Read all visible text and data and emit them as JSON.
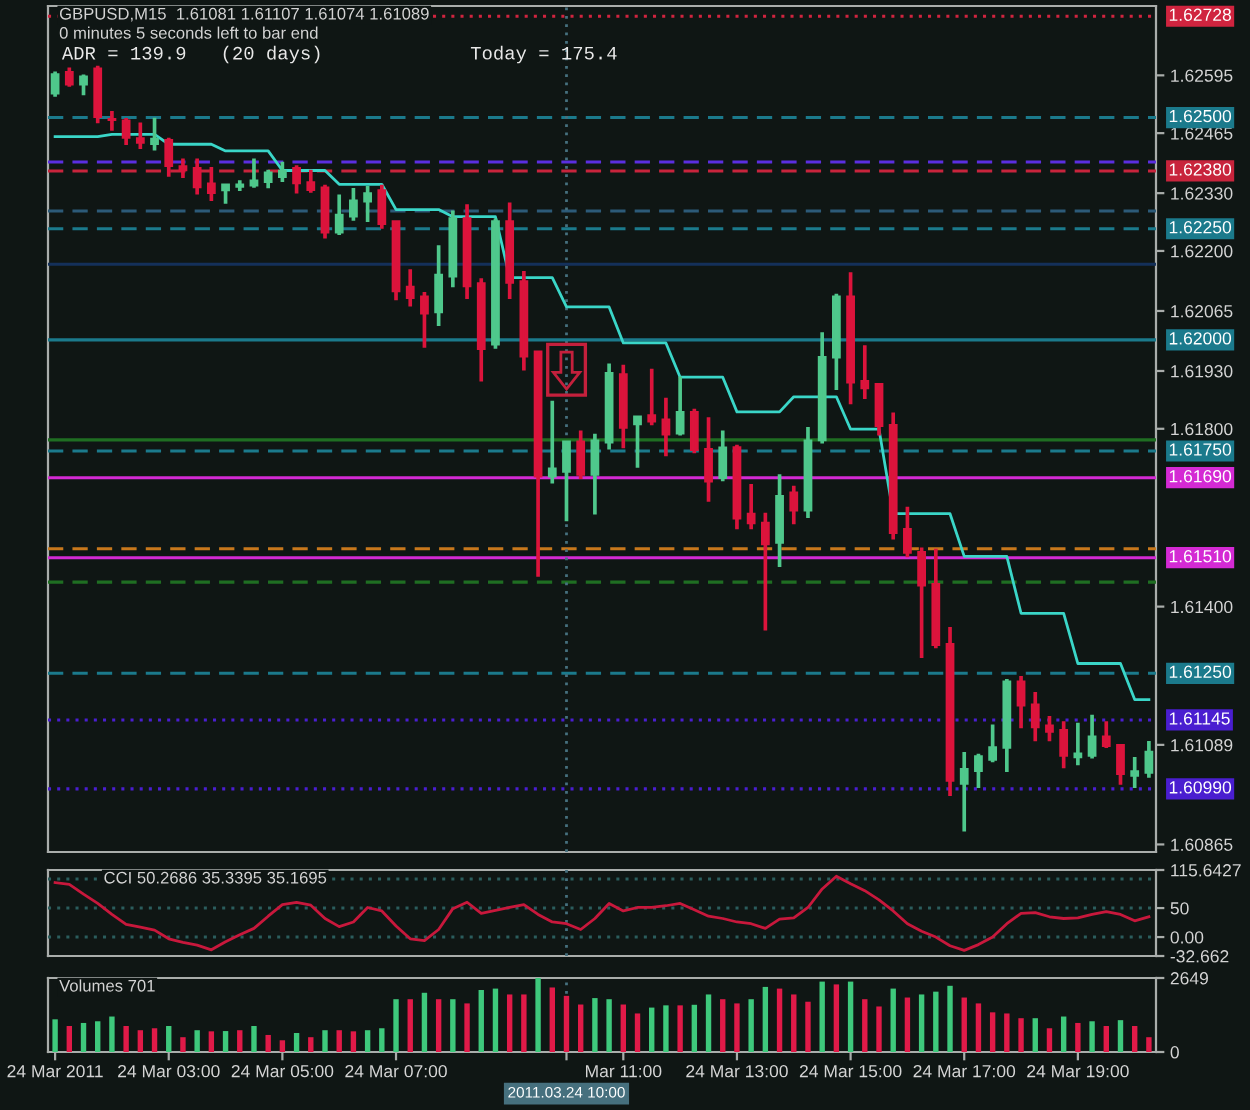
{
  "chart_data": [
    {
      "type": "candlestick",
      "title": "GBPUSD,M15  1.61081 1.61107 1.61074 1.61089",
      "subtitle": "0 minutes 5 seconds left to bar end",
      "annotations": [
        "ADR = 139.9   (20 days)",
        "Today = 175.4"
      ],
      "categories": [
        "24 Mar 2011",
        null,
        null,
        null,
        null,
        null,
        null,
        null,
        "24 Mar 03:00",
        null,
        null,
        null,
        null,
        null,
        null,
        null,
        "24 Mar 05:00",
        null,
        null,
        null,
        null,
        null,
        null,
        null,
        "24 Mar 07:00",
        null,
        null,
        null,
        null,
        null,
        null,
        null,
        null,
        null,
        null,
        null,
        "2011.03.24 10:00",
        null,
        null,
        null,
        "Mar 11:00",
        null,
        null,
        null,
        null,
        null,
        null,
        null,
        "24 Mar 13:00",
        null,
        null,
        null,
        null,
        null,
        null,
        null,
        "24 Mar 15:00",
        null,
        null,
        null,
        null,
        null,
        null,
        null,
        "24 Mar 17:00",
        null,
        null,
        null,
        null,
        null,
        null,
        null,
        "24 Mar 19:00",
        null,
        null,
        null,
        null,
        null
      ],
      "ohlc": [
        [
          1.62554,
          1.62602,
          1.62549,
          1.62598
        ],
        [
          1.62603,
          1.62611,
          1.62571,
          1.62574
        ],
        [
          1.62574,
          1.62595,
          1.62552,
          1.62593
        ],
        [
          1.62611,
          1.62615,
          1.62489,
          1.62501
        ],
        [
          1.62497,
          1.62513,
          1.62472,
          1.62494
        ],
        [
          1.62494,
          1.62497,
          1.6244,
          1.62454
        ],
        [
          1.62454,
          1.62487,
          1.62431,
          1.62443
        ],
        [
          1.6244,
          1.62498,
          1.62428,
          1.62453
        ],
        [
          1.6245,
          1.62453,
          1.62369,
          1.62391
        ],
        [
          1.62391,
          1.62406,
          1.62366,
          1.62381
        ],
        [
          1.62387,
          1.62406,
          1.62329,
          1.62343
        ],
        [
          1.62352,
          1.62387,
          1.62314,
          1.6233
        ],
        [
          1.62336,
          1.6235,
          1.62308,
          1.6235
        ],
        [
          1.62344,
          1.62357,
          1.62337,
          1.6235
        ],
        [
          1.62347,
          1.62406,
          1.62344,
          1.62359
        ],
        [
          1.62355,
          1.62381,
          1.62343,
          1.62377
        ],
        [
          1.62366,
          1.62399,
          1.62357,
          1.62381
        ],
        [
          1.62387,
          1.62391,
          1.62331,
          1.62352
        ],
        [
          1.62355,
          1.62381,
          1.62333,
          1.62337
        ],
        [
          1.62343,
          1.62347,
          1.6223,
          1.62241
        ],
        [
          1.62241,
          1.62325,
          1.62238,
          1.62282
        ],
        [
          1.62277,
          1.6234,
          1.6227,
          1.62314
        ],
        [
          1.62311,
          1.62344,
          1.62267,
          1.6233
        ],
        [
          1.62337,
          1.62347,
          1.62252,
          1.6226
        ],
        [
          1.62267,
          1.62267,
          1.62091,
          1.62109
        ],
        [
          1.6212,
          1.62157,
          1.62077,
          1.62094
        ],
        [
          1.62098,
          1.62106,
          1.61984,
          1.62059
        ],
        [
          1.62062,
          1.62211,
          1.62033,
          1.62147
        ],
        [
          1.62142,
          1.62289,
          1.6212,
          1.62274
        ],
        [
          1.62274,
          1.62303,
          1.62094,
          1.6212
        ],
        [
          1.62128,
          1.62137,
          1.61908,
          1.61979
        ],
        [
          1.61989,
          1.62271,
          1.61982,
          1.62267
        ],
        [
          1.62267,
          1.62307,
          1.62094,
          1.62128
        ],
        [
          1.62132,
          1.62153,
          1.61933,
          1.61962
        ],
        [
          1.61974,
          1.61974,
          1.61469,
          1.61692
        ],
        [
          1.61692,
          1.61861,
          1.61679,
          1.61711
        ],
        [
          1.61703,
          1.61772,
          1.61594,
          1.61772
        ],
        [
          1.61772,
          1.61794,
          1.61689,
          1.61696
        ],
        [
          1.61696,
          1.61787,
          1.61609,
          1.61774
        ],
        [
          1.61769,
          1.61945,
          1.61755,
          1.61926
        ],
        [
          1.61923,
          1.61942,
          1.61758,
          1.61802
        ],
        [
          1.6181,
          1.61828,
          1.61714,
          1.61828
        ],
        [
          1.61831,
          1.61933,
          1.6181,
          1.61816
        ],
        [
          1.61821,
          1.61868,
          1.6174,
          1.61787
        ],
        [
          1.61789,
          1.61916,
          1.61787,
          1.61838
        ],
        [
          1.61838,
          1.61843,
          1.61747,
          1.61752
        ],
        [
          1.61755,
          1.61824,
          1.61638,
          1.61681
        ],
        [
          1.61689,
          1.61794,
          1.61684,
          1.61758
        ],
        [
          1.61759,
          1.61762,
          1.61576,
          1.61598
        ],
        [
          1.61609,
          1.61674,
          1.61576,
          1.61587
        ],
        [
          1.61589,
          1.61609,
          1.61348,
          1.6154
        ],
        [
          1.61543,
          1.61696,
          1.61491,
          1.61649
        ],
        [
          1.61657,
          1.6167,
          1.61587,
          1.61616
        ],
        [
          1.61616,
          1.61802,
          1.61601,
          1.61774
        ],
        [
          1.61774,
          1.62015,
          1.61769,
          1.61962
        ],
        [
          1.6196,
          1.62102,
          1.61889,
          1.62098
        ],
        [
          1.62098,
          1.6215,
          1.61857,
          1.61904
        ],
        [
          1.61908,
          1.61986,
          1.61869,
          1.61891
        ],
        [
          1.61901,
          1.61901,
          1.61787,
          1.61806
        ],
        [
          1.61809,
          1.61835,
          1.61553,
          1.61565
        ],
        [
          1.61575,
          1.61623,
          1.61513,
          1.61521
        ],
        [
          1.61523,
          1.61531,
          1.61286,
          1.61447
        ],
        [
          1.61451,
          1.61528,
          1.61308,
          1.61313
        ],
        [
          1.61316,
          1.61352,
          1.60976,
          1.61008
        ],
        [
          1.61001,
          1.61071,
          1.60896,
          1.61035
        ],
        [
          1.6103,
          1.61067,
          1.60994,
          1.61064
        ],
        [
          1.61055,
          1.61133,
          1.61052,
          1.61084
        ],
        [
          1.61082,
          1.61235,
          1.6103,
          1.61232
        ],
        [
          1.61232,
          1.61242,
          1.61128,
          1.61177
        ],
        [
          1.6118,
          1.61206,
          1.61099,
          1.61128
        ],
        [
          1.61133,
          1.61152,
          1.61099,
          1.61118
        ],
        [
          1.61123,
          1.6114,
          1.61038,
          1.61064
        ],
        [
          1.61061,
          1.61137,
          1.61045,
          1.6107
        ],
        [
          1.61064,
          1.61155,
          1.6106,
          1.61108
        ],
        [
          1.61108,
          1.6114,
          1.61084,
          1.61086
        ],
        [
          1.61089,
          1.61089,
          1.61001,
          1.61023
        ],
        [
          1.61019,
          1.6106,
          1.60994,
          1.6103
        ],
        [
          1.61026,
          1.61096,
          1.61017,
          1.61074
        ]
      ],
      "colors": [
        "#4fc88c",
        "#dc143c",
        "#4fc88c",
        "#dc143c",
        "#dc143c",
        "#dc143c",
        "#dc143c",
        "#4fc88c",
        "#dc143c",
        "#dc143c",
        "#dc143c",
        "#dc143c",
        "#4fc88c",
        "#4fc88c",
        "#4fc88c",
        "#4fc88c",
        "#4fc88c",
        "#dc143c",
        "#dc143c",
        "#dc143c",
        "#4fc88c",
        "#4fc88c",
        "#4fc88c",
        "#dc143c",
        "#dc143c",
        "#dc143c",
        "#dc143c",
        "#4fc88c",
        "#4fc88c",
        "#dc143c",
        "#dc143c",
        "#4fc88c",
        "#dc143c",
        "#dc143c",
        "#dc143c",
        "#4fc88c",
        "#4fc88c",
        "#dc143c",
        "#4fc88c",
        "#4fc88c",
        "#dc143c",
        "#4fc88c",
        "#dc143c",
        "#dc143c",
        "#4fc88c",
        "#dc143c",
        "#dc143c",
        "#4fc88c",
        "#dc143c",
        "#dc143c",
        "#dc143c",
        "#4fc88c",
        "#dc143c",
        "#4fc88c",
        "#4fc88c",
        "#4fc88c",
        "#dc143c",
        "#dc143c",
        "#dc143c",
        "#dc143c",
        "#dc143c",
        "#dc143c",
        "#dc143c",
        "#dc143c",
        "#4fc88c",
        "#4fc88c",
        "#4fc88c",
        "#4fc88c",
        "#dc143c",
        "#dc143c",
        "#dc143c",
        "#dc143c",
        "#4fc88c",
        "#4fc88c",
        "#dc143c",
        "#dc143c",
        "#4fc88c",
        "#4fc88c"
      ],
      "series": [
        {
          "type": "line",
          "color": "#3ad6c8",
          "values": [
            1.62457,
            1.62457,
            1.62457,
            1.62457,
            1.62462,
            1.62462,
            1.62462,
            1.62462,
            1.6244,
            1.6244,
            1.6244,
            1.6244,
            1.62425,
            1.62425,
            1.62425,
            1.62425,
            1.62381,
            1.62381,
            1.62381,
            1.62381,
            1.6235,
            1.6235,
            1.6235,
            1.6235,
            1.62293,
            1.62293,
            1.62293,
            1.62293,
            1.62277,
            1.62277,
            1.62277,
            1.62277,
            1.6214,
            1.6214,
            1.6214,
            1.6214,
            1.62074,
            1.62074,
            1.62074,
            1.62074,
            1.61993,
            1.61993,
            1.61993,
            1.61993,
            1.61916,
            1.61916,
            1.61916,
            1.61916,
            1.61838,
            1.61838,
            1.61838,
            1.61838,
            1.61872,
            1.61872,
            1.61872,
            1.61872,
            1.61799,
            1.61799,
            1.61799,
            1.61609,
            1.61609,
            1.61609,
            1.61609,
            1.61609,
            1.61513,
            1.61513,
            1.61513,
            1.61513,
            1.61385,
            1.61385,
            1.61385,
            1.61385,
            1.61272,
            1.61272,
            1.61272,
            1.61272,
            1.61191,
            1.61191
          ]
        }
      ],
      "ylim": [
        1.60848,
        1.62751
      ],
      "yticks": [
        1.60865,
        1.61089,
        {
          "value": 1.614,
          "label": "1.61400"
        },
        {
          "value": 1.618,
          "label": "1.61800"
        },
        {
          "value": 1.6193,
          "label": "1.61930"
        },
        1.62065,
        {
          "value": 1.622,
          "label": "1.62200"
        },
        {
          "value": 1.6233,
          "label": "1.62330"
        },
        1.62465,
        1.62595
      ],
      "ref_lines": [
        {
          "axis": "y",
          "value": 1.62728,
          "label": "1.62728",
          "color": "#d0243f",
          "line_style": "dotted"
        },
        {
          "axis": "y",
          "value": 1.625,
          "label": "1.62500",
          "color": "#1b7a8c",
          "line_style": "dashed"
        },
        {
          "axis": "y",
          "value": 1.624,
          "color": "#5b2ee0",
          "line_style": "dashed"
        },
        {
          "axis": "y",
          "value": 1.6238,
          "label": "1.62380",
          "color": "#c8243c",
          "line_style": "dashed"
        },
        {
          "axis": "y",
          "value": 1.6229,
          "color": "#2c5a78",
          "line_style": "dashed"
        },
        {
          "axis": "y",
          "value": 1.6225,
          "label": "1.62250",
          "color": "#1b7a8c",
          "line_style": "dashed"
        },
        {
          "axis": "y",
          "value": 1.6217,
          "color": "#14305a",
          "line_style": "solid"
        },
        {
          "axis": "y",
          "value": 1.62,
          "label": "1.62000",
          "color": "#1b7a8c",
          "line_style": "solid"
        },
        {
          "axis": "y",
          "value": 1.61775,
          "color": "#1f6e22",
          "line_style": "solid"
        },
        {
          "axis": "y",
          "value": 1.6175,
          "label": "1.61750",
          "color": "#1b7a8c",
          "line_style": "dashed"
        },
        {
          "axis": "y",
          "value": 1.6169,
          "label": "1.61690",
          "color": "#d42ad4",
          "line_style": "solid"
        },
        {
          "axis": "y",
          "value": 1.6153,
          "color": "#c8781c",
          "line_style": "dashed"
        },
        {
          "axis": "y",
          "value": 1.6151,
          "label": "1.61510",
          "color": "#d42ad4",
          "line_style": "solid"
        },
        {
          "axis": "y",
          "value": 1.61455,
          "color": "#1f6e22",
          "line_style": "dashed"
        },
        {
          "axis": "y",
          "value": 1.6125,
          "label": "1.61250",
          "color": "#1b7a8c",
          "line_style": "dashed"
        },
        {
          "axis": "y",
          "value": 1.61145,
          "label": "1.61145",
          "color": "#4a1ed0",
          "line_style": "dotted"
        },
        {
          "axis": "y",
          "value": 1.6099,
          "label": "1.60990",
          "color": "#4a1ed0",
          "line_style": "dotted"
        },
        {
          "axis": "x",
          "value": "2011.03.24 10:00",
          "color": "#46707e",
          "line_style": "dotted"
        }
      ],
      "tick_labels": "y"
    },
    {
      "type": "line",
      "title": "CCI 50.2686 35.3395 35.1695",
      "color": "#c8183c",
      "categories": [
        "24 Mar 2011",
        null,
        null,
        null,
        null,
        null,
        null,
        null,
        "24 Mar 03:00",
        null,
        null,
        null,
        null,
        null,
        null,
        null,
        "24 Mar 05:00",
        null,
        null,
        null,
        null,
        null,
        null,
        null,
        "24 Mar 07:00",
        null,
        null,
        null,
        null,
        null,
        null,
        null,
        null,
        null,
        null,
        null,
        "2011.03.24 10:00",
        null,
        null,
        null,
        "Mar 11:00",
        null,
        null,
        null,
        null,
        null,
        null,
        null,
        "24 Mar 13:00",
        null,
        null,
        null,
        null,
        null,
        null,
        null,
        "24 Mar 15:00",
        null,
        null,
        null,
        null,
        null,
        null,
        null,
        "24 Mar 17:00",
        null,
        null,
        null,
        null,
        null,
        null,
        null,
        "24 Mar 19:00",
        null,
        null,
        null,
        null,
        null
      ],
      "values": [
        94,
        91,
        74,
        58,
        39,
        22,
        17,
        12,
        -3,
        -9,
        -14,
        -22,
        -8,
        4,
        15,
        36,
        56,
        60,
        55,
        32,
        18,
        26,
        51,
        45,
        19,
        -3,
        -6,
        13,
        49,
        60,
        41,
        46,
        51,
        56,
        39,
        26,
        23,
        13,
        32,
        58,
        45,
        51,
        51,
        54,
        58,
        47,
        36,
        32,
        26,
        23,
        15,
        31,
        33,
        51,
        83,
        105,
        92,
        80,
        64,
        45,
        23,
        10,
        0,
        -15,
        -23,
        -13,
        0,
        23,
        41,
        42,
        35,
        32,
        33,
        39,
        44,
        39,
        28,
        35
      ],
      "ylim": [
        -32.662,
        115.6427
      ],
      "yticks": [
        {
          "value": -32.662,
          "label": "-32.662"
        },
        {
          "value": 0,
          "label": "0.00"
        },
        50,
        {
          "value": 115.6427,
          "label": "115.6427"
        }
      ],
      "ref_lines": [
        {
          "axis": "y",
          "value": 100,
          "color": "#2b5d5d",
          "line_style": "dotted"
        },
        {
          "axis": "y",
          "value": 50,
          "color": "#2b5d5d",
          "line_style": "dotted"
        },
        {
          "axis": "y",
          "value": 0,
          "color": "#2b5d5d",
          "line_style": "dotted"
        },
        {
          "axis": "x",
          "value": "2011.03.24 10:00",
          "color": "#46707e",
          "line_style": "dotted"
        }
      ],
      "tick_labels": "y"
    },
    {
      "type": "bar",
      "title": "Volumes 701",
      "categories": [
        "24 Mar 2011",
        null,
        null,
        null,
        null,
        null,
        null,
        null,
        "24 Mar 03:00",
        null,
        null,
        null,
        null,
        null,
        null,
        null,
        "24 Mar 05:00",
        null,
        null,
        null,
        null,
        null,
        null,
        null,
        "24 Mar 07:00",
        null,
        null,
        null,
        null,
        null,
        null,
        null,
        null,
        null,
        null,
        null,
        "2011.03.24 10:00",
        null,
        null,
        null,
        "Mar 11:00",
        null,
        null,
        null,
        null,
        null,
        null,
        null,
        "24 Mar 13:00",
        null,
        null,
        null,
        null,
        null,
        null,
        null,
        "24 Mar 15:00",
        null,
        null,
        null,
        null,
        null,
        null,
        null,
        "24 Mar 17:00",
        null,
        null,
        null,
        null,
        null,
        null,
        null,
        "24 Mar 19:00",
        null,
        null,
        null,
        null,
        null
      ],
      "values": [
        1170,
        930,
        1040,
        1100,
        1270,
        930,
        780,
        850,
        930,
        530,
        780,
        740,
        750,
        780,
        930,
        610,
        420,
        680,
        530,
        780,
        780,
        740,
        780,
        850,
        1890,
        1890,
        2120,
        1890,
        1890,
        1740,
        2220,
        2270,
        2060,
        2060,
        2649,
        2310,
        2010,
        1700,
        1930,
        1890,
        1700,
        1380,
        1590,
        1670,
        1670,
        1690,
        2060,
        1890,
        1740,
        1890,
        2330,
        2270,
        2060,
        1800,
        2520,
        2420,
        2520,
        1890,
        1630,
        2270,
        1950,
        2060,
        2160,
        2370,
        1950,
        1740,
        1420,
        1380,
        1210,
        1210,
        850,
        1270,
        1040,
        1100,
        930,
        1140,
        930,
        530
      ],
      "colors": [
        "#3ec97c",
        "#e01a48",
        "#3ec97c",
        "#3ec97c",
        "#3ec97c",
        "#e01a48",
        "#e01a48",
        "#e01a48",
        "#3ec97c",
        "#e01a48",
        "#3ec97c",
        "#e01a48",
        "#3ec97c",
        "#e01a48",
        "#3ec97c",
        "#e01a48",
        "#e01a48",
        "#3ec97c",
        "#e01a48",
        "#3ec97c",
        "#e01a48",
        "#e01a48",
        "#3ec97c",
        "#3ec97c",
        "#3ec97c",
        "#e01a48",
        "#3ec97c",
        "#e01a48",
        "#3ec97c",
        "#e01a48",
        "#3ec97c",
        "#3ec97c",
        "#e01a48",
        "#e01a48",
        "#3ec97c",
        "#e01a48",
        "#e01a48",
        "#e01a48",
        "#3ec97c",
        "#3ec97c",
        "#e01a48",
        "#e01a48",
        "#3ec97c",
        "#3ec97c",
        "#e01a48",
        "#3ec97c",
        "#3ec97c",
        "#e01a48",
        "#e01a48",
        "#3ec97c",
        "#3ec97c",
        "#e01a48",
        "#e01a48",
        "#e01a48",
        "#3ec97c",
        "#e01a48",
        "#3ec97c",
        "#e01a48",
        "#e01a48",
        "#3ec97c",
        "#e01a48",
        "#3ec97c",
        "#3ec97c",
        "#3ec97c",
        "#e01a48",
        "#e01a48",
        "#e01a48",
        "#e01a48",
        "#e01a48",
        "#3ec97c",
        "#e01a48",
        "#3ec97c",
        "#e01a48",
        "#3ec97c",
        "#e01a48",
        "#3ec97c",
        "#e01a48",
        "#e01a48"
      ],
      "ylim": [
        0,
        2649
      ],
      "yticks": [
        0,
        2649
      ],
      "ref_lines": [
        {
          "axis": "x",
          "value": "2011.03.24 10:00",
          "color": "#46707e",
          "line_style": "dotted"
        }
      ]
    }
  ]
}
